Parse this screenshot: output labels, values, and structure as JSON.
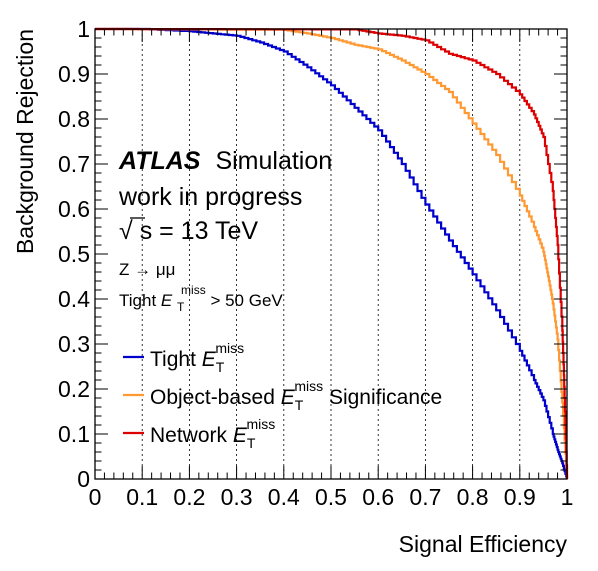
{
  "chart_data": {
    "type": "line",
    "xlabel": "Signal Efficiency",
    "ylabel": "Background Rejection",
    "xlim": [
      0,
      1
    ],
    "ylim": [
      0,
      1
    ],
    "x_ticks": [
      "0",
      "0.1",
      "0.2",
      "0.3",
      "0.4",
      "0.5",
      "0.6",
      "0.7",
      "0.8",
      "0.9",
      "1"
    ],
    "y_ticks": [
      "0",
      "0.1",
      "0.2",
      "0.3",
      "0.4",
      "0.5",
      "0.6",
      "0.7",
      "0.8",
      "0.9",
      "1"
    ],
    "vertical_grid": "dotted",
    "legend_position": "bottom-left",
    "annotations": {
      "experiment": "ATLAS",
      "simulation": "Simulation",
      "status": "work in progress",
      "energy_sqrt": "√",
      "energy_rest": "s = 13 TeV",
      "process": "Z → μμ",
      "selection_prefix": "Tight ",
      "selection_var": "E",
      "selection_sub": "T",
      "selection_sup": "miss",
      "selection_suffix": " > 50 GeV"
    },
    "series": [
      {
        "name_prefix": "Tight ",
        "name_var": "E",
        "name_sub": "T",
        "name_sup": "miss",
        "name_suffix": "",
        "color": "#0000cc",
        "x": [
          0,
          0.1,
          0.2,
          0.25,
          0.3,
          0.35,
          0.4,
          0.45,
          0.5,
          0.55,
          0.6,
          0.65,
          0.7,
          0.75,
          0.8,
          0.85,
          0.9,
          0.93,
          0.95,
          0.97,
          0.98,
          0.99,
          1.0
        ],
        "y": [
          1.0,
          1.0,
          0.995,
          0.99,
          0.985,
          0.97,
          0.95,
          0.915,
          0.875,
          0.825,
          0.775,
          0.7,
          0.61,
          0.53,
          0.455,
          0.375,
          0.285,
          0.22,
          0.175,
          0.1,
          0.065,
          0.035,
          0.0
        ]
      },
      {
        "name_prefix": "Object-based ",
        "name_var": "E",
        "name_sub": "T",
        "name_sup": "miss",
        "name_suffix": " Significance",
        "color": "#ff9933",
        "x": [
          0,
          0.4,
          0.45,
          0.5,
          0.55,
          0.6,
          0.65,
          0.7,
          0.75,
          0.8,
          0.85,
          0.9,
          0.93,
          0.95,
          0.96,
          0.97,
          0.98,
          0.99,
          1.0
        ],
        "y": [
          1.0,
          0.998,
          0.99,
          0.98,
          0.965,
          0.955,
          0.93,
          0.9,
          0.86,
          0.79,
          0.72,
          0.63,
          0.56,
          0.505,
          0.45,
          0.39,
          0.31,
          0.17,
          0.0
        ]
      },
      {
        "name_prefix": "Network ",
        "name_var": "E",
        "name_sub": "T",
        "name_sup": "miss",
        "name_suffix": "",
        "color": "#dd0000",
        "x": [
          0,
          0.55,
          0.6,
          0.65,
          0.7,
          0.75,
          0.8,
          0.85,
          0.9,
          0.93,
          0.95,
          0.97,
          0.98,
          0.99,
          0.995,
          1.0
        ],
        "y": [
          1.0,
          0.999,
          0.99,
          0.985,
          0.975,
          0.945,
          0.93,
          0.9,
          0.855,
          0.81,
          0.76,
          0.64,
          0.52,
          0.33,
          0.18,
          0.0
        ]
      }
    ]
  }
}
